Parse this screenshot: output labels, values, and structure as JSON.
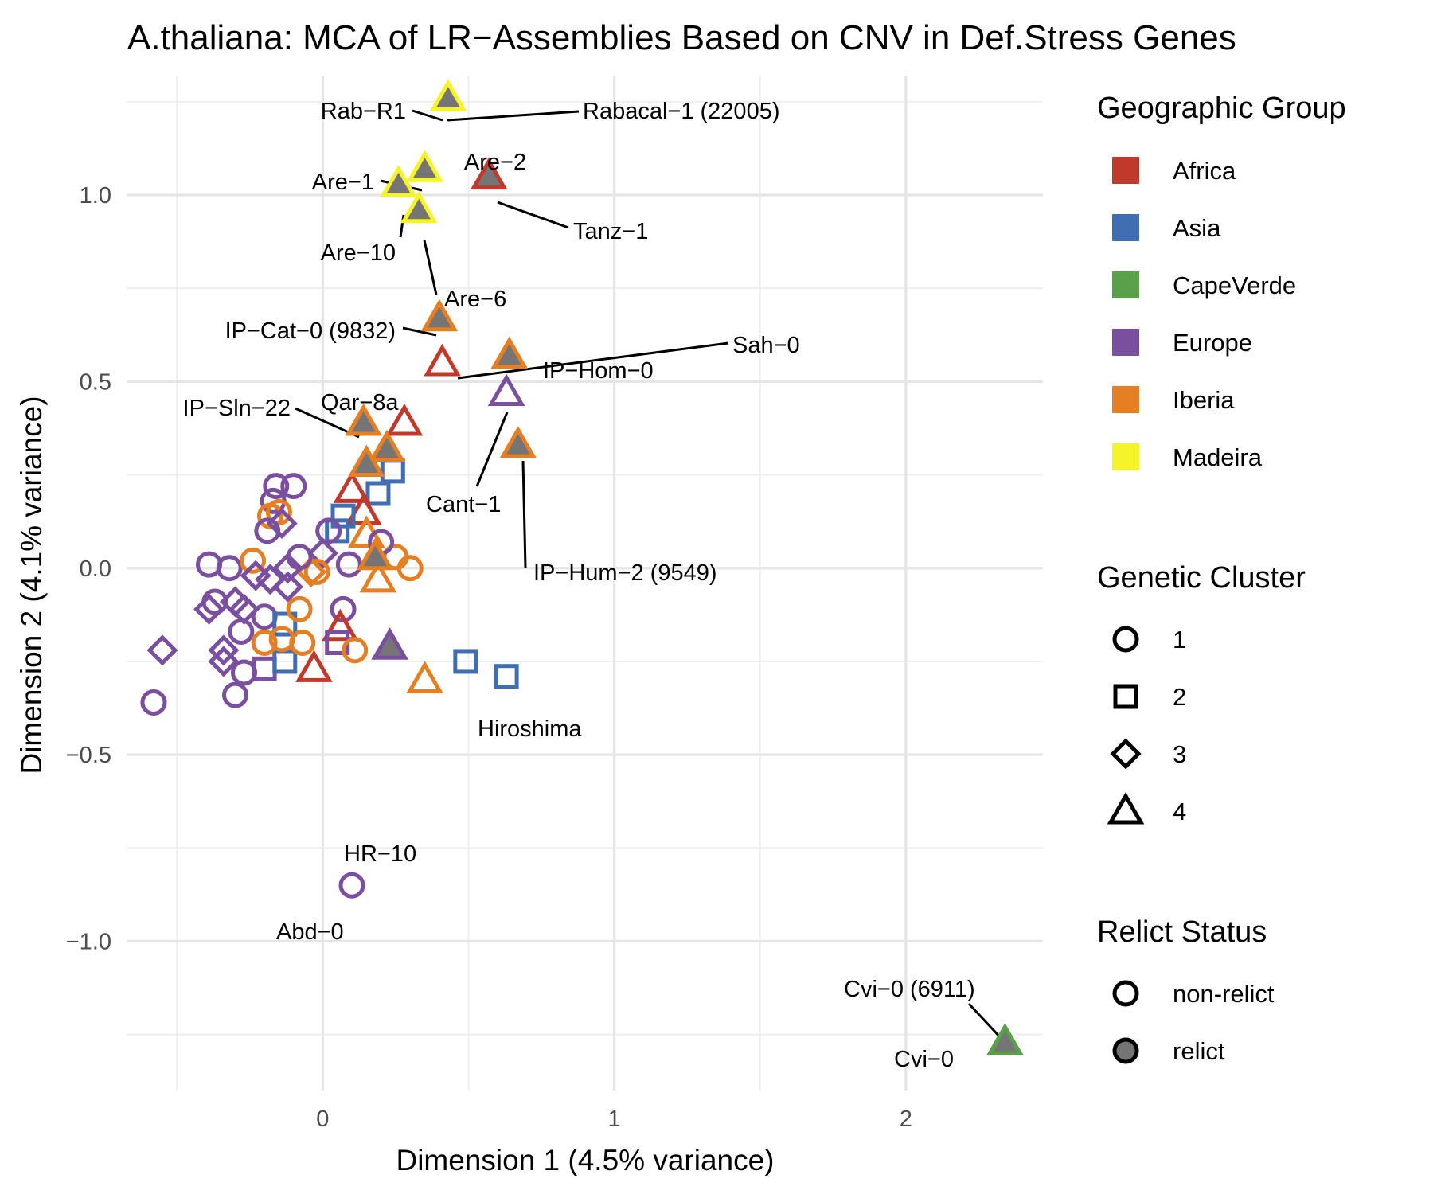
{
  "chart_data": {
    "type": "scatter",
    "title": "A.thaliana: MCA of LR−Assemblies Based on CNV in Def.Stress Genes",
    "xlabel": "Dimension 1 (4.5% variance)",
    "ylabel": "Dimension 2 (4.1% variance)",
    "xlim": [
      -0.67,
      2.47
    ],
    "ylim": [
      -1.4,
      1.32
    ],
    "x_ticks": [
      0,
      1,
      2
    ],
    "x_tick_labels": [
      "0",
      "1",
      "2"
    ],
    "y_ticks": [
      -1.0,
      -0.5,
      0.0,
      0.5,
      1.0
    ],
    "y_tick_labels": [
      "−1.0",
      "−0.5",
      "0.0",
      "0.5",
      "1.0"
    ],
    "grid": true,
    "colors": {
      "Africa": "#c0392b",
      "Asia": "#3f6eb3",
      "CapeVerde": "#5aa04a",
      "Europe": "#7b4fa0",
      "Iberia": "#e67e22",
      "Madeira": "#f5f32a",
      "relict_fill": "#757575"
    },
    "legends": {
      "geographic": {
        "title": "Geographic Group",
        "position": "right",
        "entries": [
          "Africa",
          "Asia",
          "CapeVerde",
          "Europe",
          "Iberia",
          "Madeira"
        ]
      },
      "cluster": {
        "title": "Genetic Cluster",
        "entries": [
          {
            "label": "1",
            "shape": "circle"
          },
          {
            "label": "2",
            "shape": "square"
          },
          {
            "label": "3",
            "shape": "diamond"
          },
          {
            "label": "4",
            "shape": "triangle"
          }
        ]
      },
      "relict": {
        "title": "Relict Status",
        "entries": [
          {
            "label": "non-relict",
            "filled": false
          },
          {
            "label": "relict",
            "filled": true
          }
        ]
      }
    },
    "points": [
      {
        "x": 0.43,
        "y": 1.26,
        "group": "Madeira",
        "cluster": "4",
        "relict": true
      },
      {
        "x": 0.35,
        "y": 1.07,
        "group": "Madeira",
        "cluster": "4",
        "relict": true
      },
      {
        "x": 0.26,
        "y": 1.03,
        "group": "Madeira",
        "cluster": "4",
        "relict": true
      },
      {
        "x": 0.33,
        "y": 0.96,
        "group": "Madeira",
        "cluster": "4",
        "relict": true
      },
      {
        "x": 0.57,
        "y": 1.05,
        "group": "Africa",
        "cluster": "4",
        "relict": true
      },
      {
        "x": 0.4,
        "y": 0.67,
        "group": "Iberia",
        "cluster": "4",
        "relict": true
      },
      {
        "x": 0.41,
        "y": 0.55,
        "group": "Africa",
        "cluster": "4",
        "relict": false
      },
      {
        "x": 0.64,
        "y": 0.57,
        "group": "Iberia",
        "cluster": "4",
        "relict": true
      },
      {
        "x": 0.63,
        "y": 0.47,
        "group": "Europe",
        "cluster": "4",
        "relict": false
      },
      {
        "x": 0.67,
        "y": 0.33,
        "group": "Iberia",
        "cluster": "4",
        "relict": true
      },
      {
        "x": 0.14,
        "y": 0.39,
        "group": "Iberia",
        "cluster": "4",
        "relict": true
      },
      {
        "x": 0.28,
        "y": 0.39,
        "group": "Africa",
        "cluster": "4",
        "relict": false
      },
      {
        "x": 0.22,
        "y": 0.32,
        "group": "Iberia",
        "cluster": "4",
        "relict": true
      },
      {
        "x": 0.15,
        "y": 0.28,
        "group": "Iberia",
        "cluster": "4",
        "relict": true
      },
      {
        "x": 0.24,
        "y": 0.26,
        "group": "Asia",
        "cluster": "2",
        "relict": false
      },
      {
        "x": 0.19,
        "y": 0.2,
        "group": "Asia",
        "cluster": "2",
        "relict": false
      },
      {
        "x": 0.1,
        "y": 0.21,
        "group": "Africa",
        "cluster": "4",
        "relict": false
      },
      {
        "x": 0.14,
        "y": 0.15,
        "group": "Africa",
        "cluster": "4",
        "relict": false
      },
      {
        "x": 0.07,
        "y": 0.14,
        "group": "Asia",
        "cluster": "2",
        "relict": false
      },
      {
        "x": 0.15,
        "y": 0.09,
        "group": "Iberia",
        "cluster": "4",
        "relict": false
      },
      {
        "x": 0.05,
        "y": 0.1,
        "group": "Asia",
        "cluster": "2",
        "relict": false
      },
      {
        "x": 0.18,
        "y": 0.03,
        "group": "Iberia",
        "cluster": "4",
        "relict": true
      },
      {
        "x": 0.19,
        "y": -0.03,
        "group": "Iberia",
        "cluster": "4",
        "relict": false
      },
      {
        "x": 0.25,
        "y": 0.03,
        "group": "Iberia",
        "cluster": "1",
        "relict": false
      },
      {
        "x": 0.3,
        "y": 0.0,
        "group": "Iberia",
        "cluster": "1",
        "relict": false
      },
      {
        "x": 0.2,
        "y": 0.07,
        "group": "Europe",
        "cluster": "1",
        "relict": false
      },
      {
        "x": 0.09,
        "y": 0.01,
        "group": "Europe",
        "cluster": "1",
        "relict": false
      },
      {
        "x": 0.02,
        "y": 0.1,
        "group": "Europe",
        "cluster": "1",
        "relict": false
      },
      {
        "x": 0.0,
        "y": 0.04,
        "group": "Europe",
        "cluster": "3",
        "relict": false
      },
      {
        "x": -0.02,
        "y": -0.01,
        "group": "Iberia",
        "cluster": "1",
        "relict": false
      },
      {
        "x": -0.04,
        "y": -0.01,
        "group": "Iberia",
        "cluster": "3",
        "relict": false
      },
      {
        "x": -0.12,
        "y": 0.0,
        "group": "Europe",
        "cluster": "3",
        "relict": false
      },
      {
        "x": -0.08,
        "y": 0.03,
        "group": "Europe",
        "cluster": "1",
        "relict": false
      },
      {
        "x": -0.16,
        "y": 0.22,
        "group": "Europe",
        "cluster": "1",
        "relict": false
      },
      {
        "x": -0.1,
        "y": 0.22,
        "group": "Europe",
        "cluster": "1",
        "relict": false
      },
      {
        "x": -0.17,
        "y": 0.18,
        "group": "Europe",
        "cluster": "1",
        "relict": false
      },
      {
        "x": -0.18,
        "y": 0.14,
        "group": "Iberia",
        "cluster": "1",
        "relict": false
      },
      {
        "x": -0.15,
        "y": 0.15,
        "group": "Iberia",
        "cluster": "1",
        "relict": false
      },
      {
        "x": -0.19,
        "y": 0.1,
        "group": "Europe",
        "cluster": "1",
        "relict": false
      },
      {
        "x": -0.14,
        "y": 0.12,
        "group": "Europe",
        "cluster": "3",
        "relict": false
      },
      {
        "x": -0.39,
        "y": 0.01,
        "group": "Europe",
        "cluster": "1",
        "relict": false
      },
      {
        "x": -0.32,
        "y": 0.0,
        "group": "Europe",
        "cluster": "1",
        "relict": false
      },
      {
        "x": -0.24,
        "y": 0.02,
        "group": "Iberia",
        "cluster": "1",
        "relict": false
      },
      {
        "x": -0.23,
        "y": -0.02,
        "group": "Europe",
        "cluster": "3",
        "relict": false
      },
      {
        "x": -0.18,
        "y": -0.03,
        "group": "Europe",
        "cluster": "3",
        "relict": false
      },
      {
        "x": -0.12,
        "y": -0.05,
        "group": "Europe",
        "cluster": "3",
        "relict": false
      },
      {
        "x": -0.37,
        "y": -0.09,
        "group": "Europe",
        "cluster": "1",
        "relict": false
      },
      {
        "x": -0.39,
        "y": -0.11,
        "group": "Europe",
        "cluster": "3",
        "relict": false
      },
      {
        "x": -0.3,
        "y": -0.09,
        "group": "Europe",
        "cluster": "3",
        "relict": false
      },
      {
        "x": -0.27,
        "y": -0.11,
        "group": "Europe",
        "cluster": "3",
        "relict": false
      },
      {
        "x": -0.2,
        "y": -0.13,
        "group": "Europe",
        "cluster": "1",
        "relict": false
      },
      {
        "x": -0.13,
        "y": -0.15,
        "group": "Asia",
        "cluster": "2",
        "relict": false
      },
      {
        "x": -0.08,
        "y": -0.11,
        "group": "Iberia",
        "cluster": "1",
        "relict": false
      },
      {
        "x": 0.07,
        "y": -0.11,
        "group": "Europe",
        "cluster": "1",
        "relict": false
      },
      {
        "x": 0.06,
        "y": -0.16,
        "group": "Africa",
        "cluster": "4",
        "relict": false
      },
      {
        "x": -0.28,
        "y": -0.17,
        "group": "Europe",
        "cluster": "1",
        "relict": false
      },
      {
        "x": -0.34,
        "y": -0.22,
        "group": "Europe",
        "cluster": "3",
        "relict": false
      },
      {
        "x": -0.34,
        "y": -0.25,
        "group": "Europe",
        "cluster": "3",
        "relict": false
      },
      {
        "x": -0.27,
        "y": -0.28,
        "group": "Europe",
        "cluster": "1",
        "relict": false
      },
      {
        "x": -0.3,
        "y": -0.34,
        "group": "Europe",
        "cluster": "1",
        "relict": false
      },
      {
        "x": -0.2,
        "y": -0.27,
        "group": "Europe",
        "cluster": "2",
        "relict": false
      },
      {
        "x": -0.13,
        "y": -0.25,
        "group": "Asia",
        "cluster": "2",
        "relict": false
      },
      {
        "x": -0.2,
        "y": -0.2,
        "group": "Iberia",
        "cluster": "1",
        "relict": false
      },
      {
        "x": -0.14,
        "y": -0.19,
        "group": "Iberia",
        "cluster": "1",
        "relict": false
      },
      {
        "x": -0.07,
        "y": -0.2,
        "group": "Iberia",
        "cluster": "1",
        "relict": false
      },
      {
        "x": 0.05,
        "y": -0.2,
        "group": "Europe",
        "cluster": "2",
        "relict": false
      },
      {
        "x": 0.11,
        "y": -0.22,
        "group": "Iberia",
        "cluster": "1",
        "relict": false
      },
      {
        "x": 0.23,
        "y": -0.21,
        "group": "Europe",
        "cluster": "4",
        "relict": true
      },
      {
        "x": -0.03,
        "y": -0.27,
        "group": "Africa",
        "cluster": "4",
        "relict": false
      },
      {
        "x": 0.35,
        "y": -0.3,
        "group": "Iberia",
        "cluster": "4",
        "relict": false
      },
      {
        "x": 0.49,
        "y": -0.25,
        "group": "Asia",
        "cluster": "2",
        "relict": false
      },
      {
        "x": 0.63,
        "y": -0.29,
        "group": "Asia",
        "cluster": "2",
        "relict": false
      },
      {
        "x": -0.55,
        "y": -0.22,
        "group": "Europe",
        "cluster": "3",
        "relict": false
      },
      {
        "x": -0.58,
        "y": -0.36,
        "group": "Europe",
        "cluster": "1",
        "relict": false
      },
      {
        "x": 0.1,
        "y": -0.85,
        "group": "Europe",
        "cluster": "1",
        "relict": false
      },
      {
        "x": 2.34,
        "y": -1.27,
        "group": "CapeVerde",
        "cluster": "4",
        "relict": true
      }
    ],
    "annotations": [
      {
        "text": "Rab−R1"
      },
      {
        "text": "Rabacal−1 (22005)"
      },
      {
        "text": "Are−2"
      },
      {
        "text": "Are−1"
      },
      {
        "text": "Tanz−1"
      },
      {
        "text": "Are−10"
      },
      {
        "text": "Are−6"
      },
      {
        "text": "IP−Cat−0 (9832)"
      },
      {
        "text": "Sah−0"
      },
      {
        "text": "IP−Hom−0"
      },
      {
        "text": "Qar−8a"
      },
      {
        "text": "IP−Sln−22"
      },
      {
        "text": "Cant−1"
      },
      {
        "text": "IP−Hum−2 (9549)"
      },
      {
        "text": "Hiroshima"
      },
      {
        "text": "HR−10"
      },
      {
        "text": "Abd−0"
      },
      {
        "text": "Cvi−0 (6911)"
      },
      {
        "text": "Cvi−0"
      }
    ]
  }
}
